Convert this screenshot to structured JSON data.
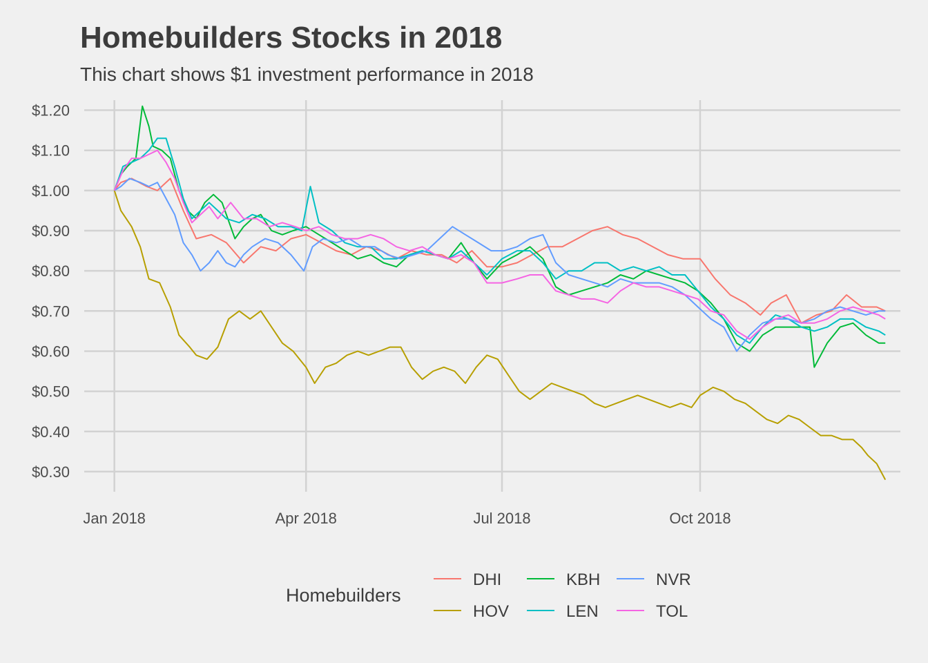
{
  "title": "Homebuilders Stocks in 2018",
  "subtitle": "This chart shows $1 investment performance in 2018",
  "chart_data": {
    "type": "line",
    "title": "Homebuilders Stocks in 2018",
    "subtitle": "This chart shows $1 investment performance in 2018",
    "xlabel": "",
    "ylabel": "",
    "x_unit": "days since Jan 1 2018",
    "xlim": [
      -14,
      365
    ],
    "ylim": [
      0.25,
      1.225
    ],
    "yticks": [
      0.3,
      0.4,
      0.5,
      0.6,
      0.7,
      0.8,
      0.9,
      1.0,
      1.1,
      1.2
    ],
    "ytick_labels": [
      "$0.30",
      "$0.40",
      "$0.50",
      "$0.60",
      "$0.70",
      "$0.80",
      "$0.90",
      "$1.00",
      "$1.10",
      "$1.20"
    ],
    "xticks": [
      0,
      89,
      180,
      272
    ],
    "xtick_labels": [
      "Jan 2018",
      "Apr 2018",
      "Jul 2018",
      "Oct 2018"
    ],
    "grid": true,
    "legend": {
      "title": "Homebuilders",
      "position": "bottom",
      "entries": [
        "DHI",
        "HOV",
        "KBH",
        "LEN",
        "NVR",
        "TOL"
      ]
    },
    "series": [
      {
        "name": "DHI",
        "color": "#F8766D",
        "x": [
          0,
          3,
          8,
          15,
          20,
          26,
          32,
          38,
          45,
          52,
          60,
          68,
          75,
          82,
          89,
          96,
          103,
          110,
          117,
          124,
          131,
          138,
          145,
          152,
          159,
          166,
          173,
          180,
          187,
          194,
          201,
          208,
          215,
          222,
          229,
          236,
          243,
          250,
          257,
          264,
          272,
          279,
          286,
          293,
          300,
          305,
          312,
          319,
          326,
          333,
          340,
          347,
          354,
          358
        ],
        "y": [
          1.0,
          1.02,
          1.03,
          1.01,
          1.0,
          1.03,
          0.95,
          0.88,
          0.89,
          0.87,
          0.82,
          0.86,
          0.85,
          0.88,
          0.89,
          0.87,
          0.85,
          0.84,
          0.86,
          0.85,
          0.83,
          0.85,
          0.84,
          0.84,
          0.82,
          0.85,
          0.81,
          0.81,
          0.82,
          0.84,
          0.86,
          0.86,
          0.88,
          0.9,
          0.91,
          0.89,
          0.88,
          0.86,
          0.84,
          0.83,
          0.83,
          0.78,
          0.74,
          0.72,
          0.69,
          0.72,
          0.74,
          0.67,
          0.69,
          0.7,
          0.74,
          0.71,
          0.71,
          0.7
        ]
      },
      {
        "name": "HOV",
        "color": "#B79F00",
        "x": [
          0,
          3,
          8,
          12,
          16,
          21,
          26,
          30,
          35,
          38,
          43,
          48,
          53,
          58,
          63,
          68,
          73,
          78,
          83,
          89,
          93,
          98,
          103,
          108,
          113,
          118,
          123,
          128,
          133,
          138,
          143,
          148,
          153,
          158,
          163,
          168,
          173,
          178,
          183,
          188,
          193,
          198,
          203,
          208,
          213,
          218,
          223,
          228,
          233,
          238,
          243,
          248,
          253,
          258,
          263,
          268,
          272,
          278,
          283,
          288,
          293,
          298,
          303,
          308,
          313,
          318,
          323,
          328,
          333,
          338,
          343,
          347,
          350,
          354,
          358
        ],
        "y": [
          1.0,
          0.95,
          0.91,
          0.86,
          0.78,
          0.77,
          0.71,
          0.64,
          0.61,
          0.59,
          0.58,
          0.61,
          0.68,
          0.7,
          0.68,
          0.7,
          0.66,
          0.62,
          0.6,
          0.56,
          0.52,
          0.56,
          0.57,
          0.59,
          0.6,
          0.59,
          0.6,
          0.61,
          0.61,
          0.56,
          0.53,
          0.55,
          0.56,
          0.55,
          0.52,
          0.56,
          0.59,
          0.58,
          0.54,
          0.5,
          0.48,
          0.5,
          0.52,
          0.51,
          0.5,
          0.49,
          0.47,
          0.46,
          0.47,
          0.48,
          0.49,
          0.48,
          0.47,
          0.46,
          0.47,
          0.46,
          0.49,
          0.51,
          0.5,
          0.48,
          0.47,
          0.45,
          0.43,
          0.42,
          0.44,
          0.43,
          0.41,
          0.39,
          0.39,
          0.38,
          0.38,
          0.36,
          0.34,
          0.32,
          0.28
        ]
      },
      {
        "name": "KBH",
        "color": "#00BA38",
        "x": [
          0,
          3,
          6,
          10,
          13,
          16,
          18,
          22,
          26,
          30,
          34,
          38,
          42,
          46,
          50,
          56,
          60,
          64,
          68,
          73,
          78,
          83,
          89,
          95,
          101,
          107,
          113,
          119,
          125,
          131,
          137,
          143,
          149,
          155,
          161,
          167,
          173,
          180,
          187,
          193,
          199,
          205,
          211,
          217,
          223,
          229,
          235,
          241,
          247,
          253,
          259,
          265,
          271,
          277,
          283,
          289,
          295,
          301,
          307,
          313,
          319,
          323,
          325,
          331,
          337,
          343,
          349,
          355,
          358
        ],
        "y": [
          1.0,
          1.04,
          1.06,
          1.08,
          1.21,
          1.16,
          1.11,
          1.1,
          1.08,
          1.0,
          0.95,
          0.93,
          0.97,
          0.99,
          0.97,
          0.88,
          0.91,
          0.93,
          0.94,
          0.9,
          0.89,
          0.9,
          0.91,
          0.89,
          0.87,
          0.85,
          0.83,
          0.84,
          0.82,
          0.81,
          0.84,
          0.85,
          0.84,
          0.83,
          0.87,
          0.82,
          0.78,
          0.82,
          0.84,
          0.86,
          0.83,
          0.76,
          0.74,
          0.75,
          0.76,
          0.77,
          0.79,
          0.78,
          0.8,
          0.79,
          0.78,
          0.77,
          0.75,
          0.72,
          0.68,
          0.62,
          0.6,
          0.64,
          0.66,
          0.66,
          0.66,
          0.66,
          0.56,
          0.62,
          0.66,
          0.67,
          0.64,
          0.62,
          0.62
        ]
      },
      {
        "name": "LEN",
        "color": "#00BFC4",
        "x": [
          0,
          4,
          8,
          12,
          16,
          20,
          24,
          28,
          32,
          36,
          40,
          44,
          48,
          52,
          58,
          64,
          70,
          76,
          82,
          87,
          91,
          95,
          101,
          107,
          113,
          119,
          125,
          131,
          137,
          143,
          149,
          155,
          161,
          167,
          173,
          180,
          187,
          193,
          199,
          205,
          211,
          217,
          223,
          229,
          235,
          241,
          247,
          253,
          259,
          265,
          271,
          277,
          283,
          289,
          295,
          301,
          307,
          313,
          319,
          325,
          331,
          337,
          343,
          349,
          355,
          358
        ],
        "y": [
          1.0,
          1.06,
          1.07,
          1.08,
          1.1,
          1.13,
          1.13,
          1.06,
          0.98,
          0.93,
          0.95,
          0.97,
          0.95,
          0.93,
          0.92,
          0.94,
          0.93,
          0.91,
          0.91,
          0.9,
          1.01,
          0.92,
          0.9,
          0.87,
          0.86,
          0.86,
          0.83,
          0.83,
          0.84,
          0.85,
          0.84,
          0.83,
          0.85,
          0.82,
          0.79,
          0.83,
          0.85,
          0.85,
          0.82,
          0.78,
          0.8,
          0.8,
          0.82,
          0.82,
          0.8,
          0.81,
          0.8,
          0.81,
          0.79,
          0.79,
          0.75,
          0.71,
          0.68,
          0.64,
          0.62,
          0.66,
          0.69,
          0.68,
          0.66,
          0.65,
          0.66,
          0.68,
          0.68,
          0.66,
          0.65,
          0.64
        ]
      },
      {
        "name": "NVR",
        "color": "#619CFF",
        "x": [
          0,
          3,
          7,
          12,
          16,
          20,
          24,
          28,
          32,
          36,
          40,
          44,
          48,
          52,
          56,
          60,
          64,
          70,
          76,
          82,
          88,
          92,
          97,
          103,
          109,
          115,
          121,
          127,
          133,
          139,
          145,
          151,
          157,
          163,
          169,
          175,
          181,
          187,
          193,
          199,
          205,
          211,
          217,
          223,
          229,
          235,
          241,
          247,
          253,
          259,
          265,
          271,
          277,
          283,
          289,
          295,
          301,
          307,
          313,
          319,
          325,
          331,
          337,
          343,
          349,
          355,
          358
        ],
        "y": [
          1.0,
          1.01,
          1.03,
          1.02,
          1.01,
          1.02,
          0.98,
          0.94,
          0.87,
          0.84,
          0.8,
          0.82,
          0.85,
          0.82,
          0.81,
          0.84,
          0.86,
          0.88,
          0.87,
          0.84,
          0.8,
          0.86,
          0.88,
          0.87,
          0.88,
          0.86,
          0.86,
          0.84,
          0.83,
          0.84,
          0.85,
          0.88,
          0.91,
          0.89,
          0.87,
          0.85,
          0.85,
          0.86,
          0.88,
          0.89,
          0.82,
          0.79,
          0.78,
          0.77,
          0.76,
          0.78,
          0.77,
          0.77,
          0.77,
          0.76,
          0.74,
          0.71,
          0.68,
          0.66,
          0.6,
          0.64,
          0.67,
          0.68,
          0.68,
          0.67,
          0.68,
          0.7,
          0.71,
          0.7,
          0.69,
          0.7,
          0.7
        ]
      },
      {
        "name": "TOL",
        "color": "#F564E3",
        "x": [
          0,
          4,
          8,
          12,
          16,
          20,
          24,
          28,
          32,
          36,
          40,
          44,
          48,
          54,
          60,
          66,
          72,
          78,
          84,
          89,
          95,
          101,
          107,
          113,
          119,
          125,
          131,
          137,
          143,
          149,
          155,
          161,
          167,
          173,
          180,
          187,
          193,
          199,
          205,
          211,
          217,
          223,
          229,
          235,
          241,
          247,
          253,
          259,
          265,
          271,
          277,
          283,
          289,
          295,
          301,
          307,
          313,
          319,
          325,
          331,
          337,
          343,
          349,
          355,
          358
        ],
        "y": [
          1.0,
          1.05,
          1.08,
          1.08,
          1.09,
          1.1,
          1.07,
          1.03,
          0.97,
          0.92,
          0.94,
          0.96,
          0.93,
          0.97,
          0.93,
          0.93,
          0.91,
          0.92,
          0.91,
          0.9,
          0.91,
          0.89,
          0.88,
          0.88,
          0.89,
          0.88,
          0.86,
          0.85,
          0.86,
          0.84,
          0.83,
          0.84,
          0.82,
          0.77,
          0.77,
          0.78,
          0.79,
          0.79,
          0.75,
          0.74,
          0.73,
          0.73,
          0.72,
          0.75,
          0.77,
          0.76,
          0.76,
          0.75,
          0.74,
          0.73,
          0.7,
          0.69,
          0.65,
          0.63,
          0.66,
          0.68,
          0.69,
          0.67,
          0.67,
          0.68,
          0.7,
          0.71,
          0.7,
          0.69,
          0.68
        ]
      }
    ]
  }
}
